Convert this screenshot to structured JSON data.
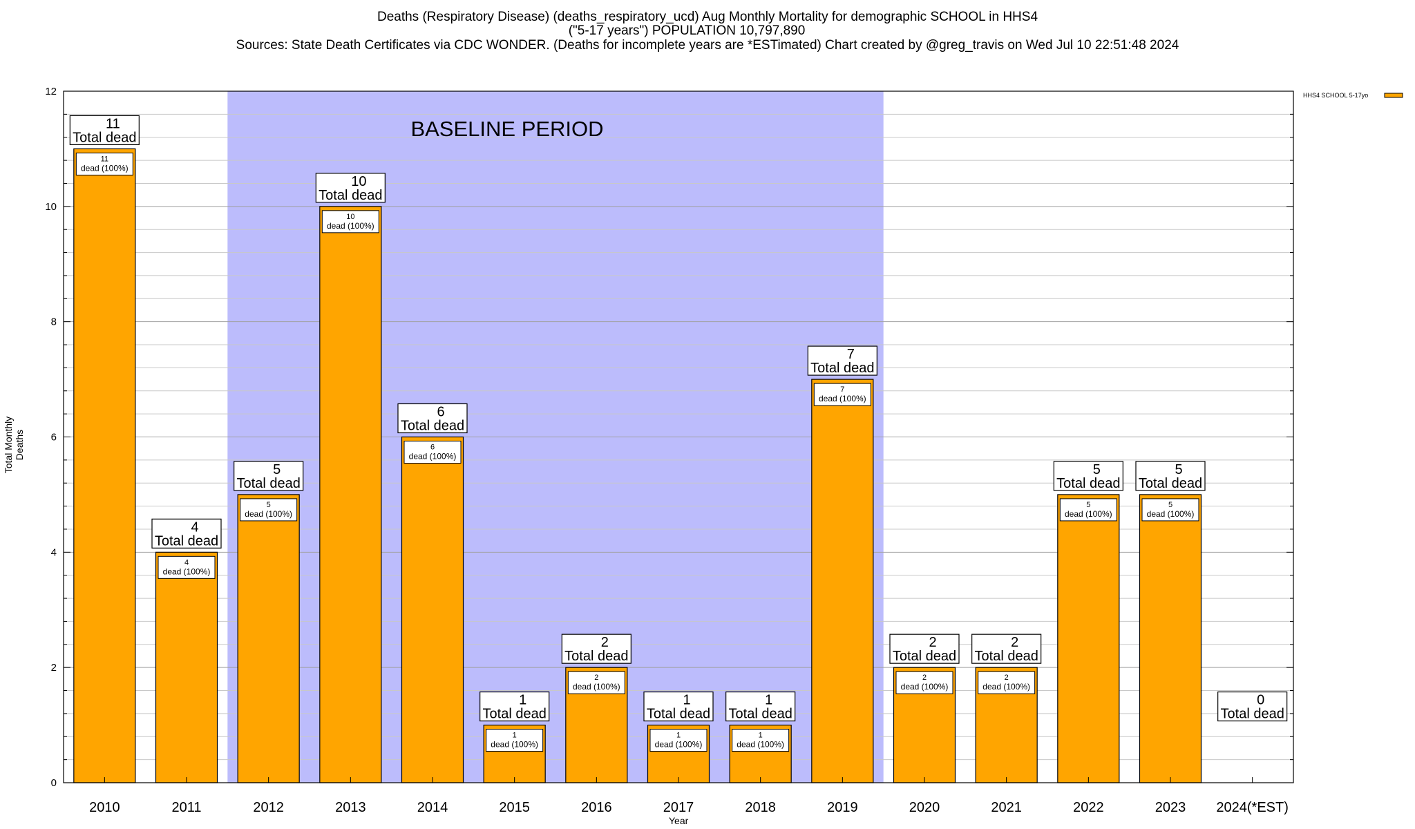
{
  "header": {
    "line1": "Deaths (Respiratory Disease) (deaths_respiratory_ucd) Aug Monthly Mortality for demographic SCHOOL in HHS4",
    "line2": "(\"5-17 years\") POPULATION 10,797,890",
    "line3": "Sources: State Death Certificates via CDC WONDER. (Deaths for incomplete years are *ESTimated)                Chart created by @greg_travis on Wed Jul 10 22:51:48 2024"
  },
  "chart_data": {
    "type": "bar",
    "title": "Deaths (Respiratory Disease) (deaths_respiratory_ucd) Aug Monthly Mortality for demographic SCHOOL in HHS4",
    "xlabel": "Year",
    "ylabel": "Total Monthly Deaths",
    "ylim": [
      0,
      12
    ],
    "yticks": [
      0,
      2,
      4,
      6,
      8,
      10,
      12
    ],
    "grid": true,
    "legend_position": "top-right",
    "categories": [
      "2010",
      "2011",
      "2012",
      "2013",
      "2014",
      "2015",
      "2016",
      "2017",
      "2018",
      "2019",
      "2020",
      "2021",
      "2022",
      "2023",
      "2024(*EST)"
    ],
    "series": [
      {
        "name": "HHS4 SCHOOL 5-17yo",
        "color": "#ffa500",
        "values": [
          11,
          4,
          5,
          10,
          6,
          1,
          2,
          1,
          1,
          7,
          2,
          2,
          5,
          5,
          0
        ]
      }
    ],
    "total_label_suffix": "Total dead",
    "inner_label_suffix": "dead (100%)",
    "shaded_region": {
      "label": "BASELINE PERIOD",
      "from": "2012",
      "to": "2019",
      "color": "#bcbcfc"
    }
  }
}
